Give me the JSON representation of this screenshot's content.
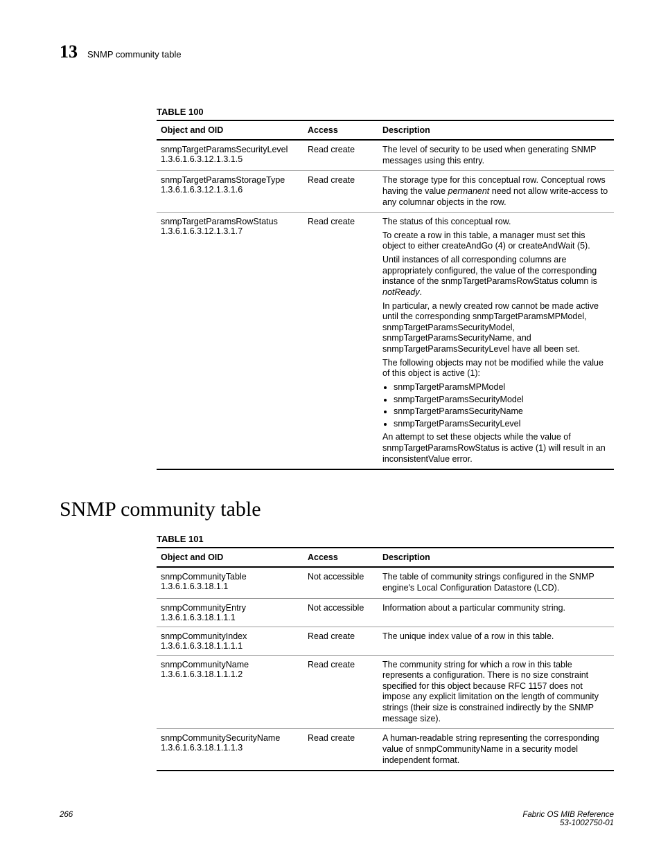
{
  "header": {
    "chapter_number": "13",
    "running_title": "SNMP community table"
  },
  "table100": {
    "label": "TABLE 100",
    "columns": [
      "Object and OID",
      "Access",
      "Description"
    ],
    "rows": [
      {
        "object": "snmpTargetParamsSecurityLevel",
        "oid": "1.3.6.1.6.3.12.1.3.1.5",
        "access": "Read create",
        "desc_parts": [
          {
            "type": "p",
            "text": "The level of security to be used when generating SNMP messages using this entry."
          }
        ]
      },
      {
        "object": "snmpTargetParamsStorageType",
        "oid": "1.3.6.1.6.3.12.1.3.1.6",
        "access": "Read create",
        "desc_parts": [
          {
            "type": "p_permanent",
            "before": "The storage type for this conceptual row. Conceptual rows having the value ",
            "italic": "permanent",
            "after": " need not allow write-access to any columnar objects in the row."
          }
        ]
      },
      {
        "object": "snmpTargetParamsRowStatus",
        "oid": "1.3.6.1.6.3.12.1.3.1.7",
        "access": "Read create",
        "desc_parts": [
          {
            "type": "p",
            "text": "The status of this conceptual row."
          },
          {
            "type": "p",
            "text": "To create a row in this table, a manager must set this object to either createAndGo (4) or createAndWait (5)."
          },
          {
            "type": "p_notready",
            "before": "Until instances of all corresponding columns are appropriately configured, the value of the corresponding instance of the snmpTargetParamsRowStatus column is ",
            "italic": "notReady",
            "after": "."
          },
          {
            "type": "p",
            "text": "In particular, a newly created row cannot be made active until the corresponding snmpTargetParamsMPModel, snmpTargetParamsSecurityModel, snmpTargetParamsSecurityName, and snmpTargetParamsSecurityLevel have all been set."
          },
          {
            "type": "p",
            "text": "The following objects may not be modified while the value of this object is active (1):"
          },
          {
            "type": "ul",
            "items": [
              "snmpTargetParamsMPModel",
              "snmpTargetParamsSecurityModel",
              "snmpTargetParamsSecurityName",
              "snmpTargetParamsSecurityLevel"
            ]
          },
          {
            "type": "p",
            "text": "An attempt to set these objects while the value of snmpTargetParamsRowStatus is active (1) will result in an inconsistentValue error."
          }
        ]
      }
    ]
  },
  "section_heading": "SNMP community table",
  "table101": {
    "label": "TABLE 101",
    "columns": [
      "Object and OID",
      "Access",
      "Description"
    ],
    "rows": [
      {
        "object": "snmpCommunityTable",
        "oid": "1.3.6.1.6.3.18.1.1",
        "access": "Not accessible",
        "desc_parts": [
          {
            "type": "p",
            "text": "The table of community strings configured in the SNMP engine's Local Configuration Datastore (LCD)."
          }
        ]
      },
      {
        "object": "snmpCommunityEntry",
        "oid": "1.3.6.1.6.3.18.1.1.1",
        "access": "Not accessible",
        "desc_parts": [
          {
            "type": "p",
            "text": "Information about a particular community string."
          }
        ]
      },
      {
        "object": "snmpCommunityIndex",
        "oid": "1.3.6.1.6.3.18.1.1.1.1",
        "access": "Read create",
        "desc_parts": [
          {
            "type": "p",
            "text": "The unique index value of a row in this table."
          }
        ]
      },
      {
        "object": "snmpCommunityName",
        "oid": "1.3.6.1.6.3.18.1.1.1.2",
        "access": "Read create",
        "desc_parts": [
          {
            "type": "p",
            "text": "The community string for which a row in this table represents a configuration. There is no size constraint specified for this object because RFC 1157 does not impose any explicit limitation on the length of community strings (their size is constrained indirectly by the SNMP message size)."
          }
        ]
      },
      {
        "object": "snmpCommunitySecurityName",
        "oid": "1.3.6.1.6.3.18.1.1.1.3",
        "access": "Read create",
        "desc_parts": [
          {
            "type": "p",
            "text": "A human-readable string representing the corresponding value of snmpCommunityName in a security model independent format."
          }
        ]
      }
    ]
  },
  "footer": {
    "page_number": "266",
    "doc_title": "Fabric OS MIB Reference",
    "doc_number": "53-1002750-01"
  }
}
